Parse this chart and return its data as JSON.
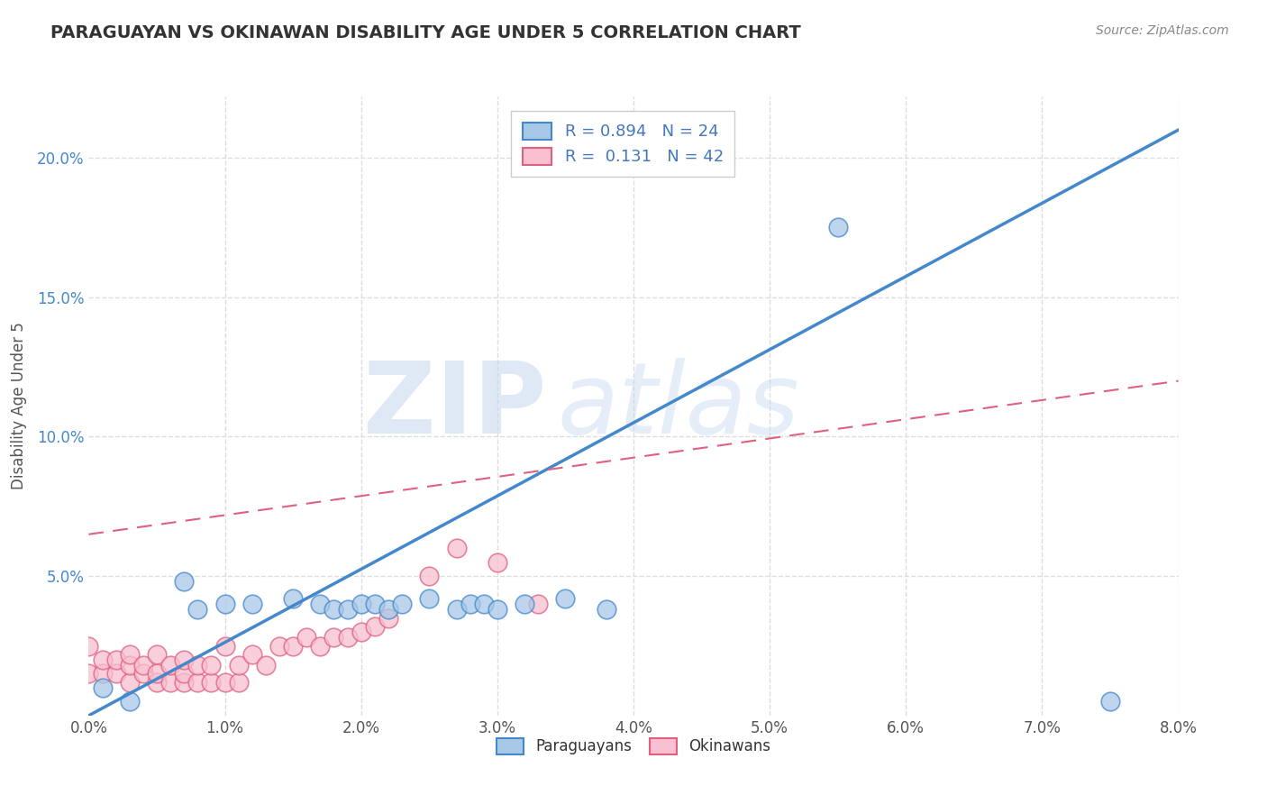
{
  "title": "PARAGUAYAN VS OKINAWAN DISABILITY AGE UNDER 5 CORRELATION CHART",
  "source_text": "Source: ZipAtlas.com",
  "ylabel": "Disability Age Under 5",
  "x_tick_labels": [
    "0.0%",
    "1.0%",
    "2.0%",
    "3.0%",
    "4.0%",
    "5.0%",
    "6.0%",
    "7.0%",
    "8.0%"
  ],
  "x_tick_values": [
    0.0,
    0.01,
    0.02,
    0.03,
    0.04,
    0.05,
    0.06,
    0.07,
    0.08
  ],
  "y_tick_labels": [
    "5.0%",
    "10.0%",
    "15.0%",
    "20.0%"
  ],
  "y_tick_values": [
    0.05,
    0.1,
    0.15,
    0.2
  ],
  "xlim": [
    0.0,
    0.08
  ],
  "ylim": [
    0.0,
    0.222
  ],
  "legend_blue_label": "R = 0.894   N = 24",
  "legend_pink_label": "R =  0.131   N = 42",
  "watermark_zip": "ZIP",
  "watermark_atlas": "atlas",
  "blue_color": "#a8c8e8",
  "blue_line_color": "#4488cc",
  "blue_edge_color": "#4488cc",
  "pink_color": "#f8c0d0",
  "pink_line_color": "#e06080",
  "pink_edge_color": "#e06080",
  "blue_scatter_x": [
    0.001,
    0.003,
    0.007,
    0.008,
    0.01,
    0.012,
    0.015,
    0.017,
    0.018,
    0.019,
    0.02,
    0.021,
    0.022,
    0.023,
    0.025,
    0.027,
    0.028,
    0.029,
    0.03,
    0.032,
    0.035,
    0.038,
    0.055,
    0.075
  ],
  "blue_scatter_y": [
    0.01,
    0.005,
    0.048,
    0.038,
    0.04,
    0.04,
    0.042,
    0.04,
    0.038,
    0.038,
    0.04,
    0.04,
    0.038,
    0.04,
    0.042,
    0.038,
    0.04,
    0.04,
    0.038,
    0.04,
    0.042,
    0.038,
    0.175,
    0.005
  ],
  "pink_scatter_x": [
    0.0,
    0.0,
    0.001,
    0.001,
    0.002,
    0.002,
    0.003,
    0.003,
    0.003,
    0.004,
    0.004,
    0.005,
    0.005,
    0.005,
    0.006,
    0.006,
    0.007,
    0.007,
    0.007,
    0.008,
    0.008,
    0.009,
    0.009,
    0.01,
    0.01,
    0.011,
    0.011,
    0.012,
    0.013,
    0.014,
    0.015,
    0.016,
    0.017,
    0.018,
    0.019,
    0.02,
    0.021,
    0.022,
    0.025,
    0.027,
    0.03,
    0.033
  ],
  "pink_scatter_y": [
    0.015,
    0.025,
    0.015,
    0.02,
    0.015,
    0.02,
    0.012,
    0.018,
    0.022,
    0.015,
    0.018,
    0.012,
    0.015,
    0.022,
    0.012,
    0.018,
    0.012,
    0.015,
    0.02,
    0.012,
    0.018,
    0.012,
    0.018,
    0.012,
    0.025,
    0.012,
    0.018,
    0.022,
    0.018,
    0.025,
    0.025,
    0.028,
    0.025,
    0.028,
    0.028,
    0.03,
    0.032,
    0.035,
    0.05,
    0.06,
    0.055,
    0.04
  ],
  "blue_line_x0": 0.0,
  "blue_line_y0": 0.0,
  "blue_line_x1": 0.08,
  "blue_line_y1": 0.21,
  "pink_line_x0": 0.0,
  "pink_line_y0": 0.065,
  "pink_line_x1": 0.08,
  "pink_line_y1": 0.12,
  "background_color": "#ffffff",
  "grid_color": "#dddddd",
  "title_color": "#333333",
  "axis_label_color": "#555555",
  "y_tick_color": "#4488cc",
  "legend_text_color": "#4477bb"
}
